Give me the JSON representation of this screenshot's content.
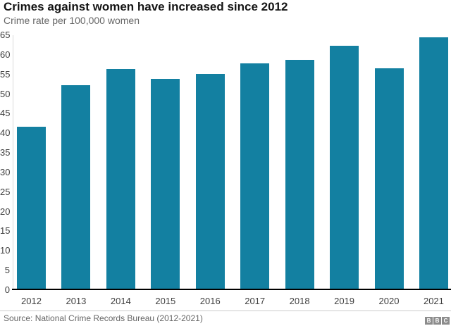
{
  "chart": {
    "title": "Crimes against women have increased since 2012",
    "subtitle": "Crime rate per 100,000 women"
  },
  "chart_data": {
    "type": "bar",
    "title": "Crimes against women have increased since 2012",
    "subtitle": "Crime rate per 100,000 women",
    "categories": [
      "2012",
      "2013",
      "2014",
      "2015",
      "2016",
      "2017",
      "2018",
      "2019",
      "2020",
      "2021"
    ],
    "values": [
      41.7,
      52.2,
      56.3,
      53.9,
      55.2,
      57.9,
      58.8,
      62.3,
      56.5,
      64.5
    ],
    "xlabel": "",
    "ylabel": "Crime rate per 100,000 women",
    "ylim": [
      0,
      65
    ],
    "yticks": [
      0,
      5,
      10,
      15,
      20,
      25,
      30,
      35,
      40,
      45,
      50,
      55,
      60,
      65
    ],
    "grid": false,
    "legend": false,
    "bar_color": "#1380A1",
    "axis_line_color": "#000000"
  },
  "footer": {
    "source": "Source: National Crime Records Bureau (2012-2021)",
    "logo_letters": [
      "B",
      "B",
      "C"
    ]
  }
}
